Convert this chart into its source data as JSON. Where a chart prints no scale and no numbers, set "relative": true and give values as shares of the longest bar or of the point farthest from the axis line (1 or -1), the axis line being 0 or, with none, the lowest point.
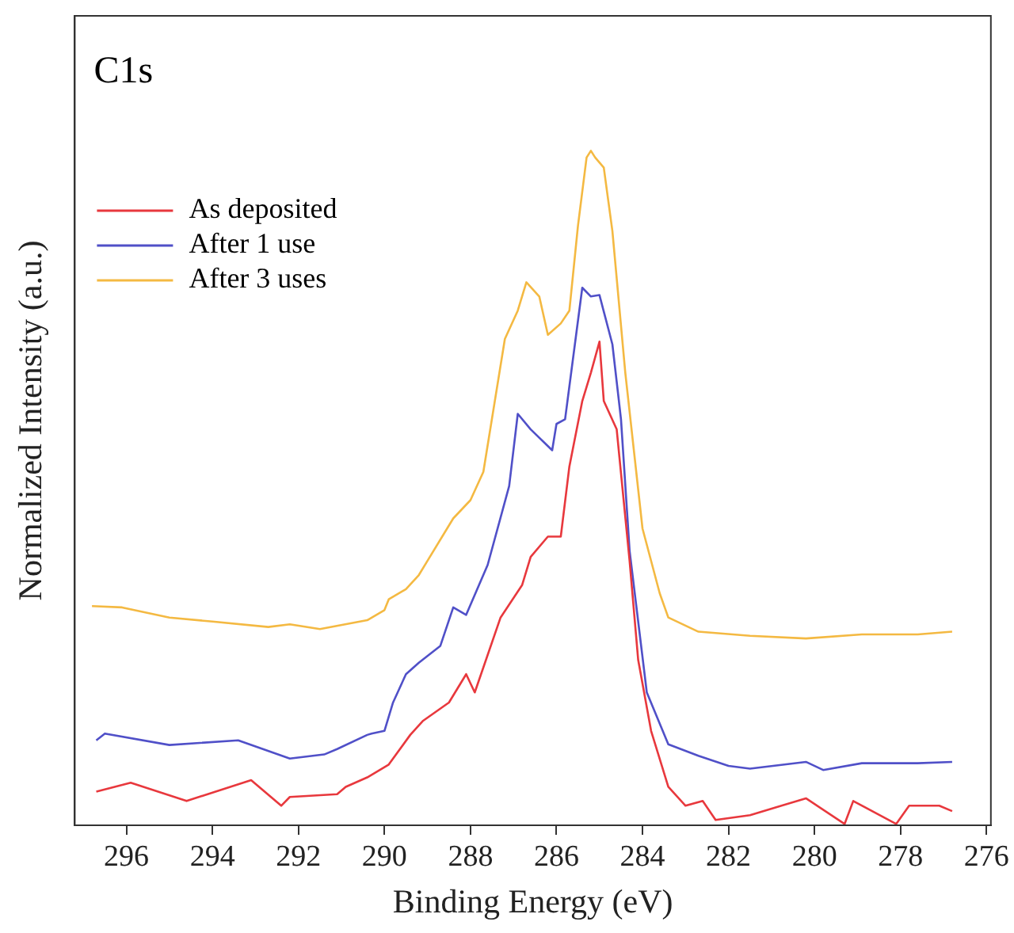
{
  "chart_data": {
    "type": "line",
    "relative": true,
    "xlabel": "Binding Energy (eV)",
    "ylabel": "Normalized Intensity (a.u.)",
    "annotations": [
      "C1s"
    ],
    "xlim": [
      297.2,
      275.9
    ],
    "xticks": [
      296,
      294,
      292,
      290,
      288,
      286,
      284,
      282,
      280,
      278,
      276
    ],
    "grid": false,
    "legend": "top left",
    "series": [
      {
        "name": "As deposited",
        "color": "#e8383d",
        "x": [
          296.7,
          295.9,
          294.6,
          293.1,
          292.4,
          292.2,
          291.1,
          290.9,
          290.4,
          289.9,
          289.4,
          289.1,
          288.5,
          288.1,
          287.9,
          287.3,
          286.8,
          286.6,
          286.2,
          285.9,
          285.7,
          285.4,
          285.2,
          285.0,
          284.9,
          284.6,
          284.3,
          284.1,
          283.8,
          283.4,
          283.0,
          282.6,
          282.3,
          281.5,
          280.2,
          279.3,
          279.1,
          278.1,
          277.8,
          277.1,
          276.8
        ],
        "values": [
          0.05,
          0.063,
          0.036,
          0.067,
          0.029,
          0.042,
          0.046,
          0.057,
          0.071,
          0.09,
          0.134,
          0.155,
          0.182,
          0.224,
          0.197,
          0.308,
          0.356,
          0.398,
          0.428,
          0.428,
          0.532,
          0.629,
          0.671,
          0.717,
          0.629,
          0.587,
          0.392,
          0.245,
          0.14,
          0.057,
          0.029,
          0.036,
          0.008,
          0.015,
          0.04,
          0.002,
          0.036,
          0.002,
          0.029,
          0.029,
          0.021
        ]
      },
      {
        "name": "After 1 use",
        "color": "#5050c8",
        "x": [
          296.7,
          296.5,
          295.0,
          293.4,
          292.2,
          291.4,
          291.1,
          290.4,
          290.3,
          290.0,
          289.8,
          289.5,
          289.2,
          288.7,
          288.4,
          288.1,
          287.6,
          287.1,
          286.9,
          286.6,
          286.1,
          286.0,
          285.8,
          285.4,
          285.2,
          285.0,
          284.7,
          284.5,
          284.3,
          283.9,
          283.4,
          282.7,
          282.0,
          281.5,
          280.2,
          279.8,
          278.9,
          277.6,
          276.8
        ],
        "values": [
          0.126,
          0.136,
          0.119,
          0.126,
          0.099,
          0.105,
          0.113,
          0.134,
          0.136,
          0.14,
          0.182,
          0.224,
          0.241,
          0.266,
          0.323,
          0.312,
          0.386,
          0.503,
          0.61,
          0.587,
          0.556,
          0.595,
          0.602,
          0.797,
          0.784,
          0.786,
          0.713,
          0.602,
          0.407,
          0.197,
          0.12,
          0.103,
          0.088,
          0.084,
          0.094,
          0.082,
          0.092,
          0.092,
          0.094
        ]
      },
      {
        "name": "After 3 uses",
        "color": "#f4b942",
        "x": [
          296.8,
          296.1,
          295.0,
          294.0,
          292.7,
          292.2,
          291.5,
          290.4,
          290.0,
          289.9,
          289.5,
          289.2,
          289.0,
          288.4,
          288.0,
          287.7,
          287.2,
          286.9,
          286.7,
          286.4,
          286.2,
          285.9,
          285.7,
          285.5,
          285.3,
          285.2,
          285.1,
          284.9,
          284.7,
          284.4,
          284.0,
          283.6,
          283.4,
          282.7,
          281.5,
          280.2,
          278.9,
          277.6,
          276.8
        ],
        "values": [
          0.325,
          0.323,
          0.308,
          0.302,
          0.294,
          0.298,
          0.291,
          0.304,
          0.319,
          0.335,
          0.35,
          0.371,
          0.392,
          0.455,
          0.482,
          0.524,
          0.721,
          0.763,
          0.805,
          0.784,
          0.727,
          0.744,
          0.763,
          0.889,
          0.99,
          1,
          0.99,
          0.975,
          0.881,
          0.671,
          0.44,
          0.344,
          0.308,
          0.287,
          0.281,
          0.277,
          0.283,
          0.283,
          0.287
        ]
      }
    ]
  }
}
